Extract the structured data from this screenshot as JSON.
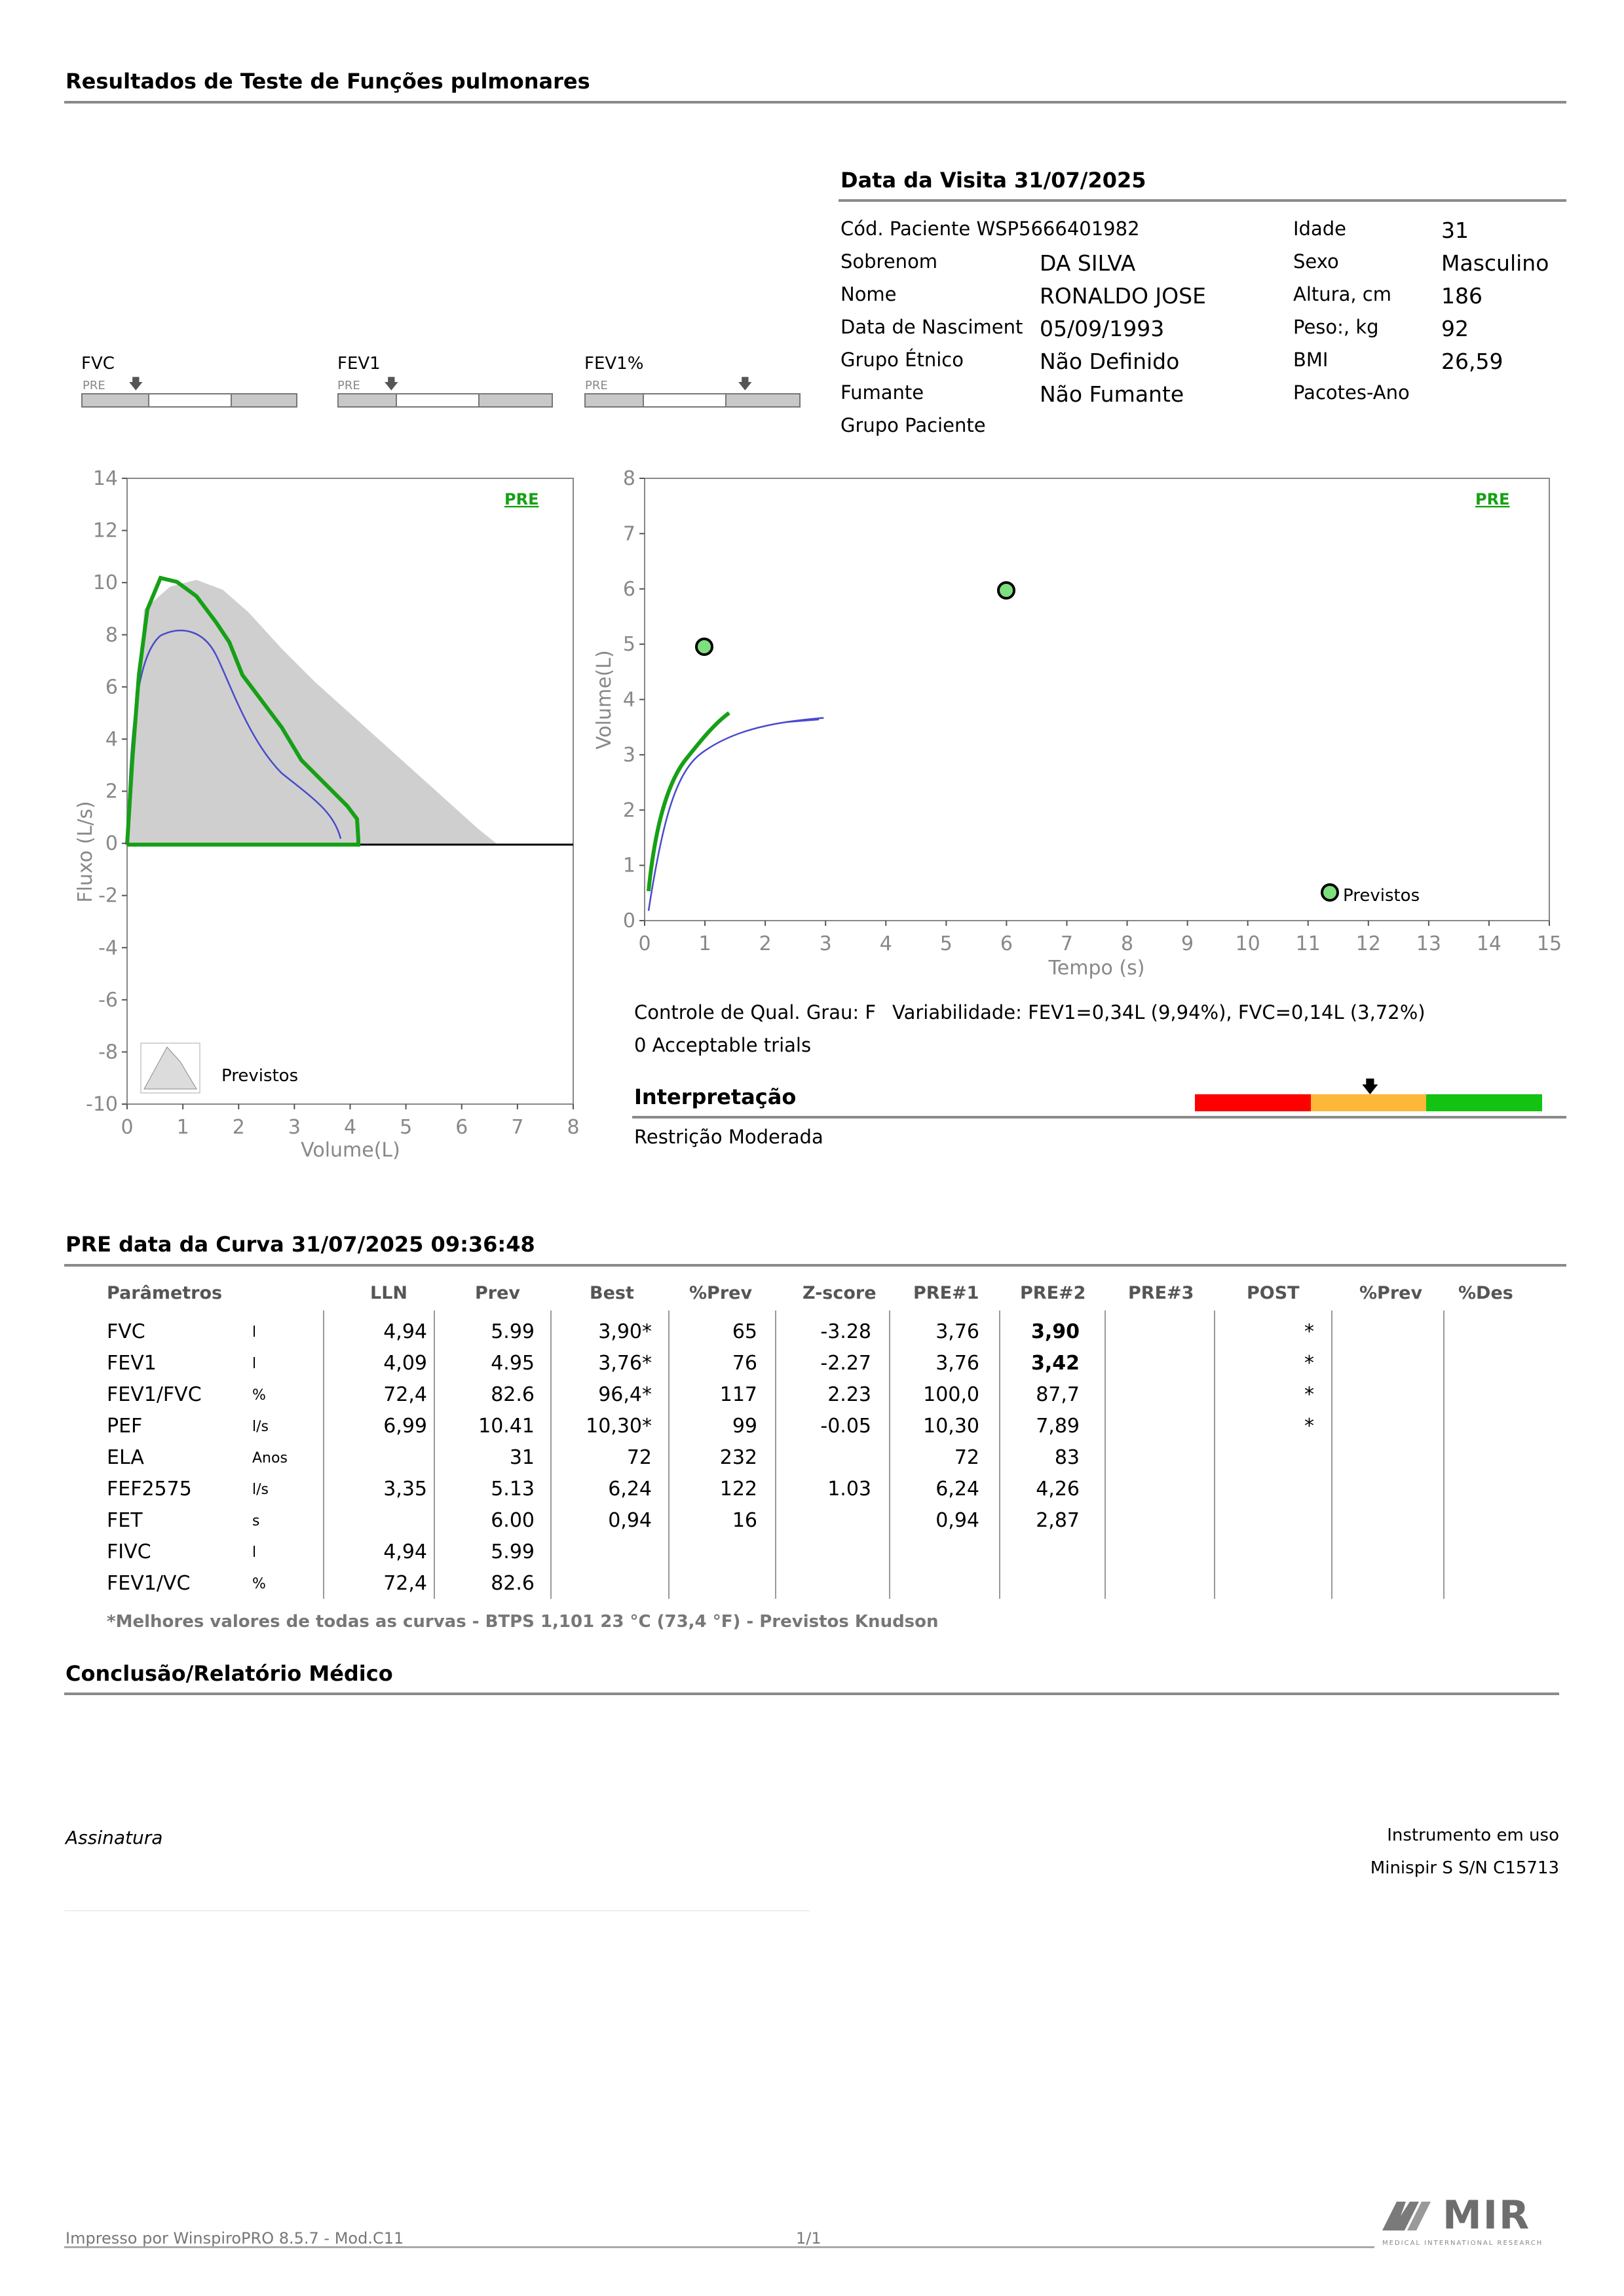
{
  "header": {
    "title": "Resultados de Teste de Funções pulmonares"
  },
  "visit": {
    "title": "Data da Visita 31/07/2025",
    "left": [
      {
        "label": "Cód. Paciente WSP5666401982",
        "value": ""
      },
      {
        "label": "Sobrenom",
        "value": "DA SILVA"
      },
      {
        "label": "Nome",
        "value": "RONALDO JOSE"
      },
      {
        "label": "Data de Nasciment",
        "value": "05/09/1993"
      },
      {
        "label": "Grupo Étnico",
        "value": "Não Definido"
      },
      {
        "label": "Fumante",
        "value": "Não Fumante"
      },
      {
        "label": "Grupo Paciente",
        "value": ""
      }
    ],
    "right": [
      {
        "label": "Idade",
        "value": "31"
      },
      {
        "label": "Sexo",
        "value": "Masculino"
      },
      {
        "label": "Altura, cm",
        "value": "186"
      },
      {
        "label": "Peso:, kg",
        "value": "92"
      },
      {
        "label": "BMI",
        "value": "26,59"
      },
      {
        "label": "Pacotes-Ano",
        "value": ""
      }
    ]
  },
  "mini_bars": [
    {
      "label": "FVC",
      "tag": "PRE"
    },
    {
      "label": "FEV1",
      "tag": "PRE"
    },
    {
      "label": "FEV1%",
      "tag": "PRE"
    }
  ],
  "flow_volume_chart": {
    "pre_label": "PRE",
    "ylabel": "Fluxo (L/s)",
    "xlabel": "Volume(L)",
    "yticks": [
      "14",
      "12",
      "10",
      "8",
      "6",
      "4",
      "2",
      "0",
      "-2",
      "-4",
      "-6",
      "-8",
      "-10"
    ],
    "xticks": [
      "0",
      "1",
      "2",
      "3",
      "4",
      "5",
      "6",
      "7",
      "8"
    ],
    "legend": "Previstos"
  },
  "volume_time_chart": {
    "pre_label": "PRE",
    "ylabel": "Volume(L)",
    "xlabel": "Tempo (s)",
    "yticks": [
      "8",
      "7",
      "6",
      "5",
      "4",
      "3",
      "2",
      "1",
      "0"
    ],
    "xticks": [
      "0",
      "1",
      "2",
      "3",
      "4",
      "5",
      "6",
      "7",
      "8",
      "9",
      "10",
      "11",
      "12",
      "13",
      "14",
      "15"
    ],
    "legend": "Previstos"
  },
  "quality": {
    "grade": "Controle de Qual. Grau: F",
    "variability": "Variabilidade: FEV1=0,34L (9,94%), FVC=0,14L (3,72%)",
    "trials": "0 Acceptable trials"
  },
  "interpretation": {
    "title": "Interpretação",
    "result": "Restrição Moderada",
    "scale_colors": [
      "#ff0000",
      "#ffb739",
      "#12c312"
    ]
  },
  "curve": {
    "title": "PRE data da Curva 31/07/2025   09:36:48",
    "headers": [
      "Parâmetros",
      "LLN",
      "Prev",
      "Best",
      "%Prev",
      "Z-score",
      "PRE#1",
      "PRE#2",
      "PRE#3",
      "POST",
      "%Prev",
      "%Des"
    ],
    "rows": [
      {
        "name": "FVC",
        "unit": "l",
        "lln": "4,94",
        "prev": "5.99",
        "best": "3,90*",
        "pprev": "65",
        "z": "-3.28",
        "pre1": "3,76",
        "pre2": "3,90",
        "pre2_bold": true,
        "post": "*"
      },
      {
        "name": "FEV1",
        "unit": "l",
        "lln": "4,09",
        "prev": "4.95",
        "best": "3,76*",
        "pprev": "76",
        "z": "-2.27",
        "pre1": "3,76",
        "pre2": "3,42",
        "pre2_bold": true,
        "post": "*"
      },
      {
        "name": "FEV1/FVC",
        "unit": "%",
        "lln": "72,4",
        "prev": "82.6",
        "best": "96,4*",
        "pprev": "117",
        "z": "2.23",
        "pre1": "100,0",
        "pre2": "87,7",
        "post": "*"
      },
      {
        "name": "PEF",
        "unit": "l/s",
        "lln": "6,99",
        "prev": "10.41",
        "best": "10,30*",
        "pprev": "99",
        "z": "-0.05",
        "pre1": "10,30",
        "pre2": "7,89",
        "post": "*"
      },
      {
        "name": "ELA",
        "unit": "Anos",
        "lln": "",
        "prev": "31",
        "best": "72",
        "pprev": "232",
        "z": "",
        "pre1": "72",
        "pre2": "83",
        "post": ""
      },
      {
        "name": "FEF2575",
        "unit": "l/s",
        "lln": "3,35",
        "prev": "5.13",
        "best": "6,24",
        "pprev": "122",
        "z": "1.03",
        "pre1": "6,24",
        "pre2": "4,26",
        "post": ""
      },
      {
        "name": "FET",
        "unit": "s",
        "lln": "",
        "prev": "6.00",
        "best": "0,94",
        "pprev": "16",
        "z": "",
        "pre1": "0,94",
        "pre2": "2,87",
        "post": ""
      },
      {
        "name": "FIVC",
        "unit": "l",
        "lln": "4,94",
        "prev": "5.99",
        "best": "",
        "pprev": "",
        "z": "",
        "pre1": "",
        "pre2": "",
        "post": ""
      },
      {
        "name": "FEV1/VC",
        "unit": "%",
        "lln": "72,4",
        "prev": "82.6",
        "best": "",
        "pprev": "",
        "z": "",
        "pre1": "",
        "pre2": "",
        "post": ""
      }
    ],
    "footnote": "*Melhores valores de todas as curvas - BTPS  1,101  23 °C  (73,4 °F) - Previstos Knudson"
  },
  "conclusion": {
    "title": "Conclusão/Relatório Médico"
  },
  "signature": {
    "label": "Assinatura"
  },
  "instrument": {
    "title": "Instrumento em uso",
    "model": "Minispir S S/N C15713"
  },
  "footer": {
    "printed_by": "Impresso por WinspiroPRO  8.5.7 - Mod.C11",
    "page": "1/1",
    "logo_text": "MIR",
    "logo_sub": "MEDICAL INTERNATIONAL RESEARCH"
  }
}
